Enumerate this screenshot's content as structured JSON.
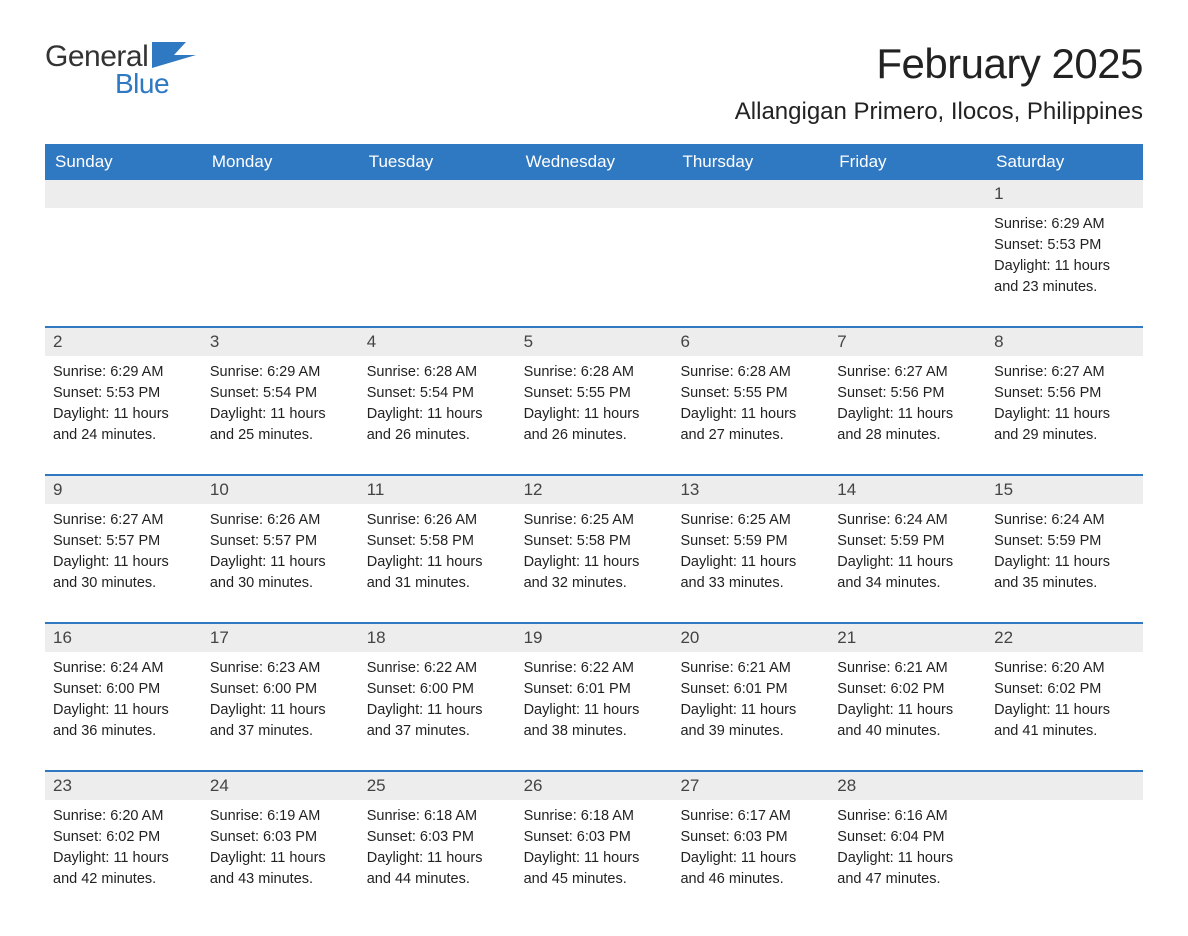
{
  "logo": {
    "text_general": "General",
    "text_blue": "Blue",
    "icon_color": "#2f78c2"
  },
  "header": {
    "month_title": "February 2025",
    "location": "Allangigan Primero, Ilocos, Philippines"
  },
  "colors": {
    "header_bg": "#2f78c2",
    "header_text": "#ffffff",
    "daynum_bg": "#ededed",
    "border": "#2f78c2",
    "body_text": "#222222"
  },
  "weekdays": [
    "Sunday",
    "Monday",
    "Tuesday",
    "Wednesday",
    "Thursday",
    "Friday",
    "Saturday"
  ],
  "weeks": [
    [
      {
        "day": "",
        "lines": []
      },
      {
        "day": "",
        "lines": []
      },
      {
        "day": "",
        "lines": []
      },
      {
        "day": "",
        "lines": []
      },
      {
        "day": "",
        "lines": []
      },
      {
        "day": "",
        "lines": []
      },
      {
        "day": "1",
        "lines": [
          "Sunrise: 6:29 AM",
          "Sunset: 5:53 PM",
          "Daylight: 11 hours and 23 minutes."
        ]
      }
    ],
    [
      {
        "day": "2",
        "lines": [
          "Sunrise: 6:29 AM",
          "Sunset: 5:53 PM",
          "Daylight: 11 hours and 24 minutes."
        ]
      },
      {
        "day": "3",
        "lines": [
          "Sunrise: 6:29 AM",
          "Sunset: 5:54 PM",
          "Daylight: 11 hours and 25 minutes."
        ]
      },
      {
        "day": "4",
        "lines": [
          "Sunrise: 6:28 AM",
          "Sunset: 5:54 PM",
          "Daylight: 11 hours and 26 minutes."
        ]
      },
      {
        "day": "5",
        "lines": [
          "Sunrise: 6:28 AM",
          "Sunset: 5:55 PM",
          "Daylight: 11 hours and 26 minutes."
        ]
      },
      {
        "day": "6",
        "lines": [
          "Sunrise: 6:28 AM",
          "Sunset: 5:55 PM",
          "Daylight: 11 hours and 27 minutes."
        ]
      },
      {
        "day": "7",
        "lines": [
          "Sunrise: 6:27 AM",
          "Sunset: 5:56 PM",
          "Daylight: 11 hours and 28 minutes."
        ]
      },
      {
        "day": "8",
        "lines": [
          "Sunrise: 6:27 AM",
          "Sunset: 5:56 PM",
          "Daylight: 11 hours and 29 minutes."
        ]
      }
    ],
    [
      {
        "day": "9",
        "lines": [
          "Sunrise: 6:27 AM",
          "Sunset: 5:57 PM",
          "Daylight: 11 hours and 30 minutes."
        ]
      },
      {
        "day": "10",
        "lines": [
          "Sunrise: 6:26 AM",
          "Sunset: 5:57 PM",
          "Daylight: 11 hours and 30 minutes."
        ]
      },
      {
        "day": "11",
        "lines": [
          "Sunrise: 6:26 AM",
          "Sunset: 5:58 PM",
          "Daylight: 11 hours and 31 minutes."
        ]
      },
      {
        "day": "12",
        "lines": [
          "Sunrise: 6:25 AM",
          "Sunset: 5:58 PM",
          "Daylight: 11 hours and 32 minutes."
        ]
      },
      {
        "day": "13",
        "lines": [
          "Sunrise: 6:25 AM",
          "Sunset: 5:59 PM",
          "Daylight: 11 hours and 33 minutes."
        ]
      },
      {
        "day": "14",
        "lines": [
          "Sunrise: 6:24 AM",
          "Sunset: 5:59 PM",
          "Daylight: 11 hours and 34 minutes."
        ]
      },
      {
        "day": "15",
        "lines": [
          "Sunrise: 6:24 AM",
          "Sunset: 5:59 PM",
          "Daylight: 11 hours and 35 minutes."
        ]
      }
    ],
    [
      {
        "day": "16",
        "lines": [
          "Sunrise: 6:24 AM",
          "Sunset: 6:00 PM",
          "Daylight: 11 hours and 36 minutes."
        ]
      },
      {
        "day": "17",
        "lines": [
          "Sunrise: 6:23 AM",
          "Sunset: 6:00 PM",
          "Daylight: 11 hours and 37 minutes."
        ]
      },
      {
        "day": "18",
        "lines": [
          "Sunrise: 6:22 AM",
          "Sunset: 6:00 PM",
          "Daylight: 11 hours and 37 minutes."
        ]
      },
      {
        "day": "19",
        "lines": [
          "Sunrise: 6:22 AM",
          "Sunset: 6:01 PM",
          "Daylight: 11 hours and 38 minutes."
        ]
      },
      {
        "day": "20",
        "lines": [
          "Sunrise: 6:21 AM",
          "Sunset: 6:01 PM",
          "Daylight: 11 hours and 39 minutes."
        ]
      },
      {
        "day": "21",
        "lines": [
          "Sunrise: 6:21 AM",
          "Sunset: 6:02 PM",
          "Daylight: 11 hours and 40 minutes."
        ]
      },
      {
        "day": "22",
        "lines": [
          "Sunrise: 6:20 AM",
          "Sunset: 6:02 PM",
          "Daylight: 11 hours and 41 minutes."
        ]
      }
    ],
    [
      {
        "day": "23",
        "lines": [
          "Sunrise: 6:20 AM",
          "Sunset: 6:02 PM",
          "Daylight: 11 hours and 42 minutes."
        ]
      },
      {
        "day": "24",
        "lines": [
          "Sunrise: 6:19 AM",
          "Sunset: 6:03 PM",
          "Daylight: 11 hours and 43 minutes."
        ]
      },
      {
        "day": "25",
        "lines": [
          "Sunrise: 6:18 AM",
          "Sunset: 6:03 PM",
          "Daylight: 11 hours and 44 minutes."
        ]
      },
      {
        "day": "26",
        "lines": [
          "Sunrise: 6:18 AM",
          "Sunset: 6:03 PM",
          "Daylight: 11 hours and 45 minutes."
        ]
      },
      {
        "day": "27",
        "lines": [
          "Sunrise: 6:17 AM",
          "Sunset: 6:03 PM",
          "Daylight: 11 hours and 46 minutes."
        ]
      },
      {
        "day": "28",
        "lines": [
          "Sunrise: 6:16 AM",
          "Sunset: 6:04 PM",
          "Daylight: 11 hours and 47 minutes."
        ]
      },
      {
        "day": "",
        "lines": []
      }
    ]
  ]
}
